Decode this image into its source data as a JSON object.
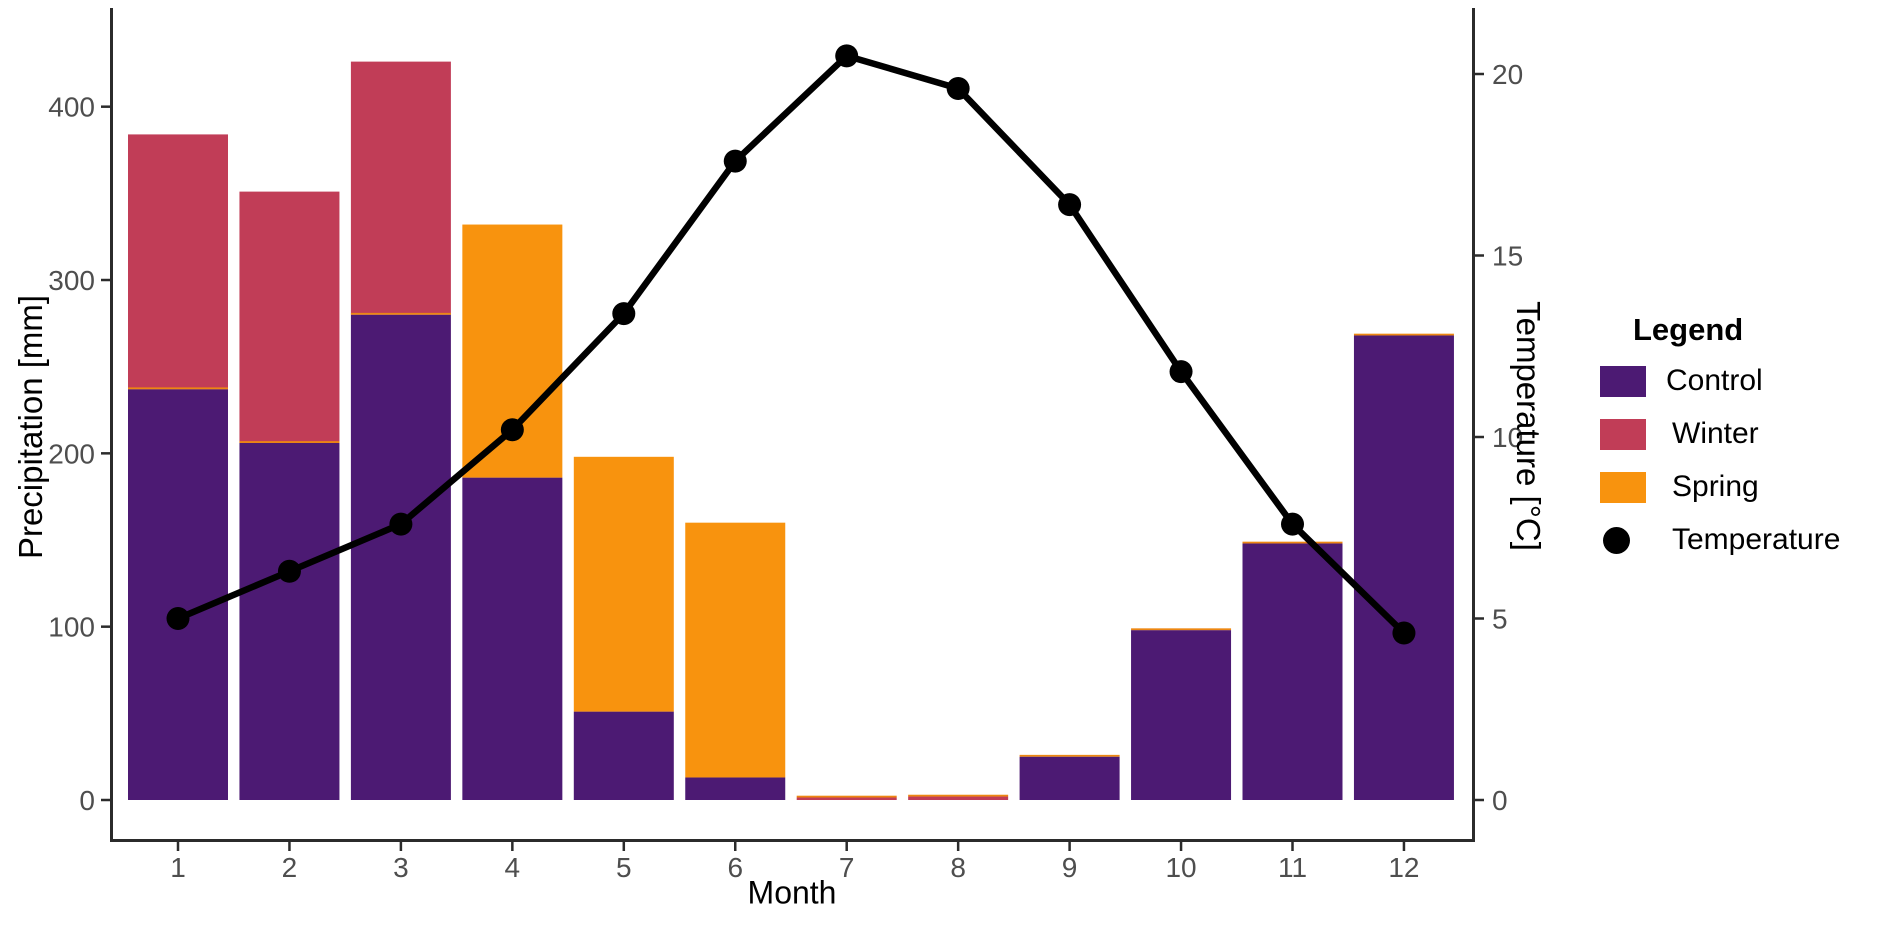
{
  "chart_data": [
    {
      "type": "bar",
      "stacked": true,
      "axis": "left",
      "categories": [
        "1",
        "2",
        "3",
        "4",
        "5",
        "6",
        "7",
        "8",
        "9",
        "10",
        "11",
        "12"
      ],
      "series": [
        {
          "name": "Control",
          "color": "#4C1A73",
          "values": [
            237,
            206,
            280,
            186,
            51,
            13,
            0,
            0,
            25,
            98,
            148,
            268
          ]
        },
        {
          "name": "Winter",
          "color": "#C13D57",
          "values": [
            147,
            145,
            146,
            0,
            0,
            0,
            1,
            2,
            0,
            0,
            0,
            0
          ]
        },
        {
          "name": "Spring",
          "color": "#F8930E",
          "values": [
            0,
            0,
            0,
            146,
            147,
            147,
            0,
            0,
            0,
            0,
            0,
            0
          ]
        }
      ],
      "bar_outline_color": "#ED8712",
      "title": "",
      "xlabel": "Month",
      "ylabel": "Precipitation [mm]",
      "ylim": [
        0,
        455
      ],
      "yticks": [
        0,
        100,
        200,
        300,
        400
      ],
      "grid": false
    },
    {
      "type": "line",
      "axis": "right",
      "name": "Temperature",
      "color": "#000000",
      "x": [
        "1",
        "2",
        "3",
        "4",
        "5",
        "6",
        "7",
        "8",
        "9",
        "10",
        "11",
        "12"
      ],
      "y": [
        5.0,
        6.3,
        7.6,
        10.2,
        13.4,
        17.6,
        20.5,
        19.6,
        16.4,
        11.8,
        7.6,
        4.6
      ],
      "ylabel": "Temperature [°C]",
      "ylim": [
        0,
        22
      ],
      "yticks": [
        0,
        5,
        10,
        15,
        20
      ],
      "marker": "circle",
      "grid": false
    }
  ],
  "axes": {
    "left_title": "Precipitation [mm]",
    "right_title": "Temperature [°C]",
    "bottom_title": "Month",
    "tick_label_color": "#4e4e4e",
    "axis_line_color": "#2b2b2b"
  },
  "legend": {
    "title": "Legend",
    "position": "right",
    "items": [
      {
        "label": "Control",
        "swatch": "square",
        "color": "#4C1A73"
      },
      {
        "label": "Winter",
        "swatch": "square",
        "color": "#C13D57"
      },
      {
        "label": "Spring",
        "swatch": "square",
        "color": "#F8930E"
      },
      {
        "label": "Temperature",
        "swatch": "dot",
        "color": "#000000"
      }
    ]
  }
}
